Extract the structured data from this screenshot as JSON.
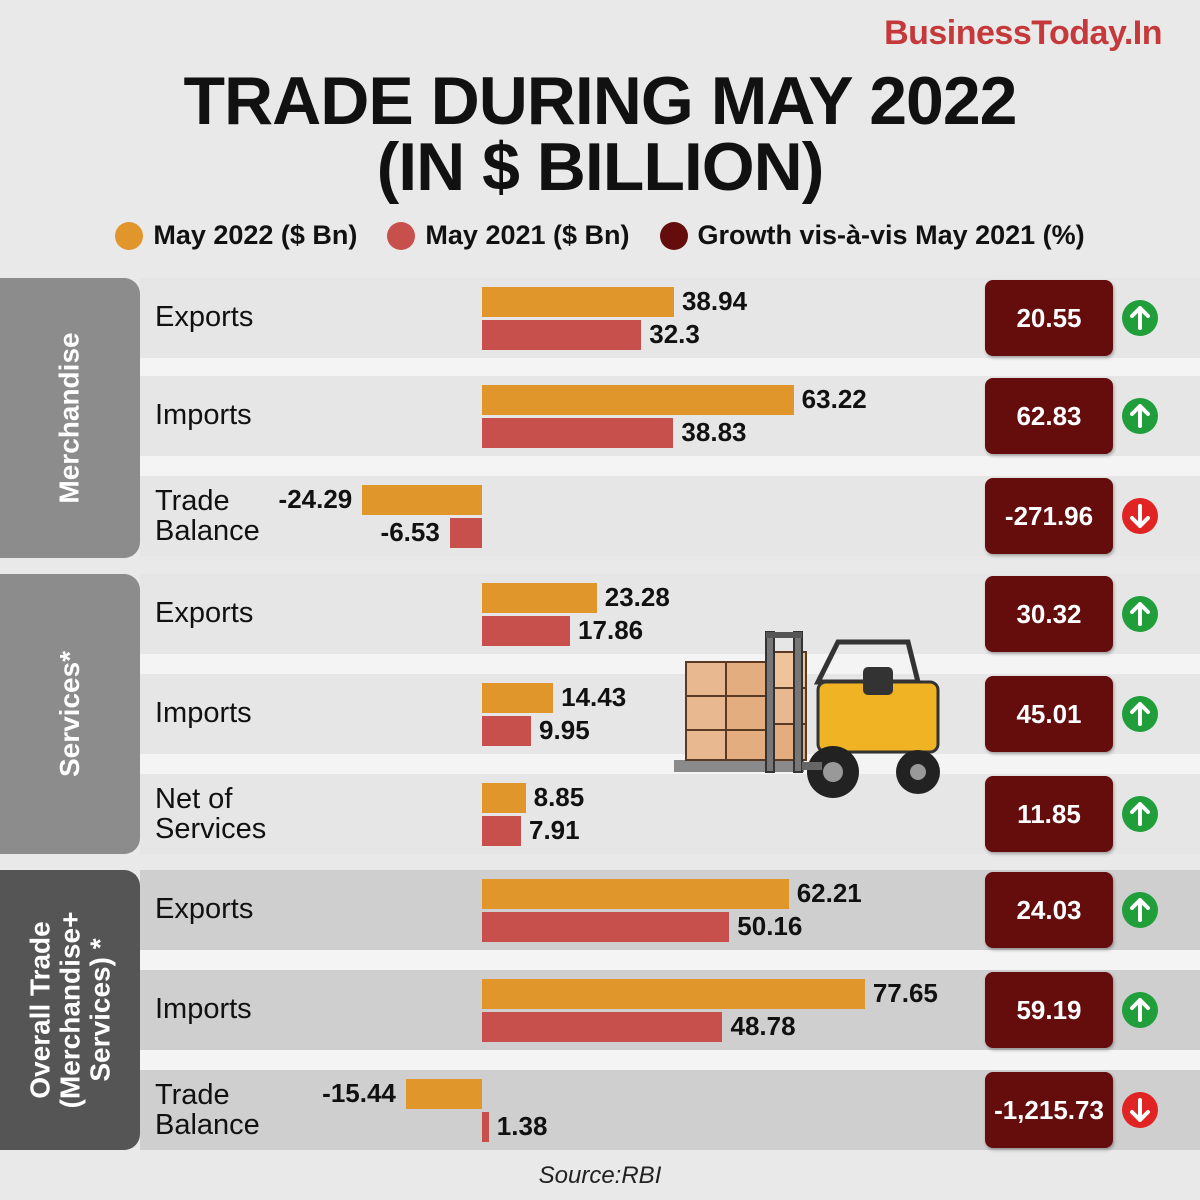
{
  "brand": "BusinessToday.In",
  "title_line1": "TRADE DURING MAY 2022",
  "title_line2": "(IN $ BILLION)",
  "legend": [
    {
      "label": "May 2022 ($ Bn)",
      "color": "#e0962b"
    },
    {
      "label": "May 2021 ($ Bn)",
      "color": "#c8504c"
    },
    {
      "label": "Growth vis-à-vis May 2021 (%)",
      "color": "#650c0c"
    }
  ],
  "groups": [
    {
      "label": "Merchandise",
      "color": "#8c8c8c"
    },
    {
      "label": "Services*",
      "color": "#8c8c8c"
    },
    {
      "label": "Overall Trade\n(Merchandise+\nServices) *",
      "color": "#555555"
    }
  ],
  "source": "Source:RBI",
  "chart_data": {
    "type": "bar",
    "title": "TRADE DURING MAY 2022 (IN $ BILLION)",
    "series_names": [
      "May 2022 ($ Bn)",
      "May 2021 ($ Bn)",
      "Growth vis-à-vis May 2021 (%)"
    ],
    "rows": [
      {
        "group": "Merchandise",
        "label": "Exports",
        "may2022": 38.94,
        "may2021": 32.3,
        "may2022_text": "38.94",
        "may2021_text": "32.3",
        "growth": "20.55",
        "direction": "up"
      },
      {
        "group": "Merchandise",
        "label": "Imports",
        "may2022": 63.22,
        "may2021": 38.83,
        "may2022_text": "63.22",
        "may2021_text": "38.83",
        "growth": "62.83",
        "direction": "up"
      },
      {
        "group": "Merchandise",
        "label": "Trade\nBalance",
        "may2022": -24.29,
        "may2021": -6.53,
        "may2022_text": "-24.29",
        "may2021_text": "-6.53",
        "growth": "-271.96",
        "direction": "down"
      },
      {
        "group": "Services*",
        "label": "Exports",
        "may2022": 23.28,
        "may2021": 17.86,
        "may2022_text": "23.28",
        "may2021_text": "17.86",
        "growth": "30.32",
        "direction": "up"
      },
      {
        "group": "Services*",
        "label": "Imports",
        "may2022": 14.43,
        "may2021": 9.95,
        "may2022_text": "14.43",
        "may2021_text": "9.95",
        "growth": "45.01",
        "direction": "up"
      },
      {
        "group": "Services*",
        "label": "Net of\nServices",
        "may2022": 8.85,
        "may2021": 7.91,
        "may2022_text": "8.85",
        "may2021_text": "7.91",
        "growth": "11.85",
        "direction": "up"
      },
      {
        "group": "Overall Trade (Merchandise+ Services) *",
        "label": "Exports",
        "may2022": 62.21,
        "may2021": 50.16,
        "may2022_text": "62.21",
        "may2021_text": "50.16",
        "growth": "24.03",
        "direction": "up"
      },
      {
        "group": "Overall Trade (Merchandise+ Services) *",
        "label": "Imports",
        "may2022": 77.65,
        "may2021": 48.78,
        "may2022_text": "77.65",
        "may2021_text": "48.78",
        "growth": "59.19",
        "direction": "up"
      },
      {
        "group": "Overall Trade (Merchandise+ Services) *",
        "label": "Trade\nBalance",
        "may2022": -15.44,
        "may2021": 1.38,
        "may2022_text": "-15.44",
        "may2021_text": "1.38",
        "growth": "-1,215.73",
        "direction": "down"
      }
    ],
    "colors": {
      "may2022": "#e0962b",
      "may2021": "#c8504c",
      "growth_box": "#650c0c",
      "up_arrow": "#1f9e3a",
      "down_arrow": "#e02424"
    }
  }
}
